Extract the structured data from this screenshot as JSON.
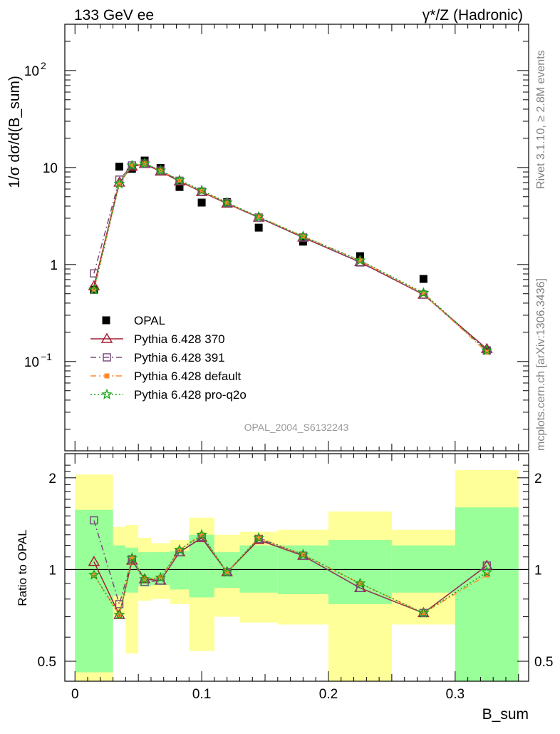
{
  "header": {
    "left": "133 GeV ee",
    "right": "γ*/Z (Hadronic)"
  },
  "side_labels": {
    "rivet": "Rivet 3.1.10, ≥ 2.8M events",
    "mcplots": "mcplots.cern.ch [arXiv:1306.3436]"
  },
  "analysis_id": "OPAL_2004_S6132243",
  "colors": {
    "band_inner": "#99ff99",
    "band_outer": "#ffff99",
    "data": "#000000",
    "pythia_370": "#a31f34",
    "pythia_391": "#7a4d7a",
    "pythia_default": "#ff8a33",
    "pythia_pro_q2o": "#17a317"
  },
  "chart_data": [
    {
      "type": "scatter",
      "panel": "main",
      "ylabel": "1/σ dσ/d(B_sum)",
      "yscale": "log",
      "ylim": [
        0.012,
        300
      ],
      "xlim": [
        -0.008,
        0.358
      ],
      "y_ticks": [
        "10^-1",
        "1",
        "10",
        "10^2"
      ],
      "legend": {
        "placement": "middle-left",
        "entries": [
          "OPAL",
          "Pythia 6.428 370",
          "Pythia 6.428 391",
          "Pythia 6.428 default",
          "Pythia 6.428 pro-q2o"
        ]
      },
      "x": [
        0.015,
        0.035,
        0.045,
        0.055,
        0.0675,
        0.0825,
        0.1,
        0.12,
        0.145,
        0.18,
        0.225,
        0.275,
        0.325
      ],
      "series": [
        {
          "name": "OPAL",
          "style": "data",
          "values": [
            0.55,
            10.2,
            9.7,
            11.8,
            9.9,
            6.3,
            4.35,
            4.4,
            2.4,
            1.72,
            1.22,
            0.71,
            0.13
          ]
        },
        {
          "name": "Pythia 6.428 370",
          "style": "triangle-solid",
          "values": [
            0.6,
            7.0,
            10.2,
            10.9,
            9.1,
            7.2,
            5.6,
            4.25,
            3.05,
            1.9,
            1.06,
            0.49,
            0.135
          ]
        },
        {
          "name": "Pythia 6.428 391",
          "style": "square-dashdot",
          "values": [
            0.81,
            7.5,
            10.5,
            11.0,
            9.3,
            7.3,
            5.65,
            4.3,
            3.05,
            1.9,
            1.05,
            0.49,
            0.13
          ]
        },
        {
          "name": "Pythia 6.428 default",
          "style": "filled-square-dashdot",
          "values": [
            0.55,
            6.8,
            10.4,
            11.0,
            9.3,
            7.3,
            5.7,
            4.3,
            3.1,
            1.95,
            1.1,
            0.5,
            0.125
          ]
        },
        {
          "name": "Pythia 6.428 pro-q2o",
          "style": "star-dotted",
          "values": [
            0.55,
            6.8,
            10.5,
            11.0,
            9.3,
            7.4,
            5.8,
            4.35,
            3.1,
            1.95,
            1.1,
            0.51,
            0.13
          ]
        }
      ]
    },
    {
      "type": "line",
      "panel": "ratio",
      "ylabel": "Ratio to OPAL",
      "xlabel": "B_sum",
      "yscale": "log",
      "ylim": [
        0.43,
        2.4
      ],
      "xlim": [
        -0.008,
        0.358
      ],
      "x_ticks": [
        "0",
        "0.1",
        "0.2",
        "0.3"
      ],
      "y_ticks": [
        "0.5",
        "1",
        "2"
      ],
      "bins": [
        [
          0.0,
          0.03
        ],
        [
          0.03,
          0.04
        ],
        [
          0.04,
          0.05
        ],
        [
          0.05,
          0.06
        ],
        [
          0.06,
          0.075
        ],
        [
          0.075,
          0.09
        ],
        [
          0.09,
          0.11
        ],
        [
          0.11,
          0.13
        ],
        [
          0.13,
          0.16
        ],
        [
          0.16,
          0.2
        ],
        [
          0.2,
          0.25
        ],
        [
          0.25,
          0.3
        ],
        [
          0.3,
          0.35
        ]
      ],
      "band_inner": [
        [
          0.46,
          1.57
        ],
        [
          0.82,
          1.2
        ],
        [
          0.84,
          1.18
        ],
        [
          0.88,
          1.14
        ],
        [
          0.89,
          1.14
        ],
        [
          0.86,
          1.15
        ],
        [
          0.81,
          1.3
        ],
        [
          0.87,
          1.14
        ],
        [
          0.84,
          1.2
        ],
        [
          0.83,
          1.2
        ],
        [
          0.77,
          1.25
        ],
        [
          0.84,
          1.2
        ],
        [
          0.385,
          1.6
        ]
      ],
      "band_outer": [
        [
          0.38,
          2.05
        ],
        [
          0.7,
          1.38
        ],
        [
          0.53,
          1.4
        ],
        [
          0.79,
          1.27
        ],
        [
          0.8,
          1.22
        ],
        [
          0.77,
          1.25
        ],
        [
          0.54,
          1.48
        ],
        [
          0.7,
          1.3
        ],
        [
          0.67,
          1.33
        ],
        [
          0.66,
          1.35
        ],
        [
          0.43,
          1.55
        ],
        [
          0.66,
          1.35
        ],
        [
          0.27,
          2.12
        ]
      ],
      "series": [
        {
          "name": "Pythia 6.428 370",
          "values": [
            1.06,
            0.71,
            1.07,
            0.93,
            0.92,
            1.14,
            1.27,
            0.98,
            1.25,
            1.11,
            0.87,
            0.72,
            1.03
          ]
        },
        {
          "name": "Pythia 6.428 391",
          "values": [
            1.45,
            0.77,
            1.08,
            0.91,
            0.92,
            1.14,
            1.28,
            0.98,
            1.26,
            1.11,
            0.87,
            0.72,
            1.03
          ]
        },
        {
          "name": "Pythia 6.428 default",
          "values": [
            0.96,
            0.71,
            1.09,
            0.93,
            0.94,
            1.16,
            1.3,
            0.98,
            1.27,
            1.12,
            0.9,
            0.72,
            0.96
          ]
        },
        {
          "name": "Pythia 6.428 pro-q2o",
          "values": [
            0.96,
            0.71,
            1.09,
            0.93,
            0.94,
            1.16,
            1.3,
            0.98,
            1.27,
            1.12,
            0.9,
            0.72,
            0.98
          ]
        }
      ]
    }
  ]
}
